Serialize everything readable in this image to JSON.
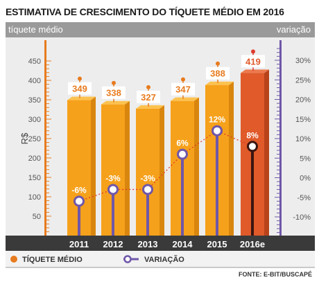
{
  "title": "ESTIMATIVA DE CRESCIMENTO DO TÍQUETE MÉDIO EM 2016",
  "header": {
    "left_label": "tíquete médio",
    "right_label": "variação"
  },
  "colors": {
    "bar": "#f6a11b",
    "bar_side": "#d9860f",
    "bar_top": "#fcc24f",
    "bar_estimate": "#e05a2a",
    "bar_estimate_side": "#b8431b",
    "line": "#6f57a8",
    "dot_line": "#e0392b",
    "accent": "#e77b1e"
  },
  "chart_data": {
    "type": "bar",
    "title": "ESTIMATIVA DE CRESCIMENTO DO TÍQUETE MÉDIO EM 2016",
    "categories": [
      "2011",
      "2012",
      "2013",
      "2014",
      "2015",
      "2016e"
    ],
    "series": [
      {
        "name": "TÍQUETE MÉDIO",
        "values": [
          349,
          338,
          327,
          347,
          388,
          419
        ],
        "labels": [
          "349",
          "338",
          "327",
          "347",
          "388",
          "419"
        ]
      },
      {
        "name": "VARIAÇÃO",
        "values": [
          -6,
          -3,
          -3,
          6,
          12,
          8
        ],
        "labels": [
          "-6%",
          "-3%",
          "-3%",
          "6%",
          "12%",
          "8%"
        ]
      }
    ],
    "ylabel": "R$",
    "ylim": [
      0,
      450
    ],
    "yticks": [
      "50",
      "100",
      "150",
      "200",
      "250",
      "300",
      "350",
      "400",
      "450"
    ],
    "y2lim": [
      -10,
      30
    ],
    "y2ticks": [
      "-10%",
      "-5%",
      "0%",
      "5%",
      "10%",
      "15%",
      "20%",
      "25%",
      "30%"
    ],
    "grid": false,
    "legend": "bottom-left"
  },
  "legend": {
    "ticket_label": "TÍQUETE MÉDIO",
    "variation_label": "VARIAÇÃO"
  },
  "source": "FONTE: E-BIT/BUSCAPÉ"
}
